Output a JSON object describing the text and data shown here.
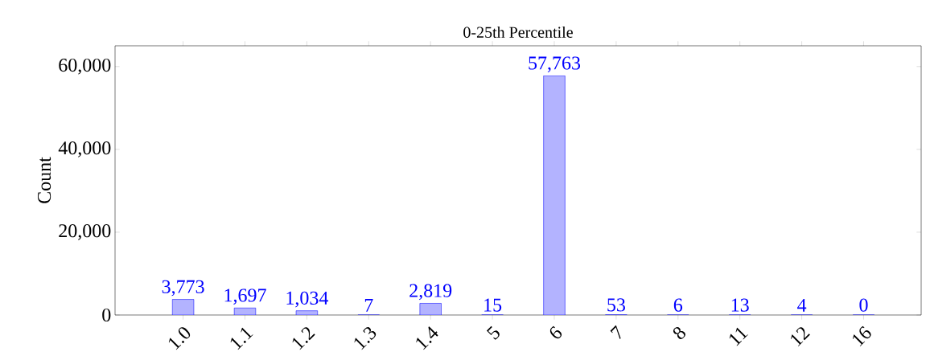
{
  "chart_data": {
    "type": "bar",
    "title": "0-25th Percentile",
    "ylabel": "Count",
    "categories": [
      "1.0",
      "1.1",
      "1.2",
      "1.3",
      "1.4",
      "5",
      "6",
      "7",
      "8",
      "11",
      "12",
      "16"
    ],
    "values": [
      3773,
      1697,
      1034,
      7,
      2819,
      15,
      57763,
      53,
      6,
      13,
      4,
      0
    ],
    "value_labels": [
      "3,773",
      "1,697",
      "1,034",
      "7",
      "2,819",
      "15",
      "57,763",
      "53",
      "6",
      "13",
      "4",
      "0"
    ],
    "color": "#b3b3ff",
    "ylim": [
      0,
      65000
    ],
    "yticks": [
      {
        "value": 0,
        "label": "0"
      },
      {
        "value": 20000,
        "label": "20,000"
      },
      {
        "value": 40000,
        "label": "40,000"
      },
      {
        "value": 60000,
        "label": "60,000"
      }
    ],
    "grid": false
  }
}
